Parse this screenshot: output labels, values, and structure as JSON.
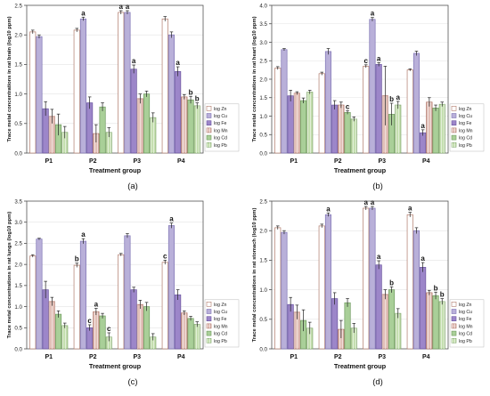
{
  "legend_items": [
    {
      "label": "log Zn",
      "color": "#ffffff",
      "edge": "#b07a6a",
      "hatch": "none"
    },
    {
      "label": "log Cu",
      "color": "#b9b0d9",
      "edge": "#7f74b5",
      "hatch": "none"
    },
    {
      "label": "log Fe",
      "color": "#9c86c9",
      "edge": "#6b55a0",
      "hatch": "none"
    },
    {
      "label": "log Mn",
      "color": "#e2c0b8",
      "edge": "#a86a5c",
      "hatch": "vertical"
    },
    {
      "label": "log Cd",
      "color": "#a9cf98",
      "edge": "#6f9a5e",
      "hatch": "none"
    },
    {
      "label": "log Pb",
      "color": "#c5dfb0",
      "edge": "#7fa56a",
      "hatch": "vertical"
    }
  ],
  "chart_data": [
    {
      "type": "bar",
      "panel_label": "(a)",
      "ylabel": "Trace metal concentrations in rat brain (log10 ppm)",
      "xlabel": "Treatment group",
      "categories": [
        "P1",
        "P2",
        "P3",
        "P4"
      ],
      "ylim": [
        0,
        2.5
      ],
      "yticks": [
        0.0,
        0.5,
        1.0,
        1.5,
        2.0,
        2.5
      ],
      "ytick_labels": [
        "0.0",
        "0.5",
        "1.0",
        "1.5",
        "2.0",
        "2.5"
      ],
      "grid": true,
      "legend": "right",
      "series": [
        {
          "name": "log Zn",
          "values": [
            2.05,
            2.08,
            2.38,
            2.27
          ],
          "errors": [
            0.03,
            0.03,
            0.03,
            0.04
          ],
          "letters": [
            "",
            "",
            "a",
            ""
          ]
        },
        {
          "name": "log Cu",
          "values": [
            1.97,
            2.27,
            2.38,
            2.0
          ],
          "errors": [
            0.03,
            0.03,
            0.03,
            0.05
          ],
          "letters": [
            "",
            "a",
            "a",
            ""
          ]
        },
        {
          "name": "log Fe",
          "values": [
            0.75,
            0.85,
            1.42,
            1.38
          ],
          "errors": [
            0.12,
            0.1,
            0.07,
            0.08
          ],
          "letters": [
            "",
            "",
            "a",
            "a"
          ]
        },
        {
          "name": "log Mn",
          "values": [
            0.62,
            0.33,
            0.92,
            0.95
          ],
          "errors": [
            0.12,
            0.15,
            0.08,
            0.04
          ],
          "letters": [
            "",
            "",
            "",
            ""
          ]
        },
        {
          "name": "log Cd",
          "values": [
            0.48,
            0.78,
            1.0,
            0.9
          ],
          "errors": [
            0.18,
            0.07,
            0.05,
            0.06
          ],
          "letters": [
            "",
            "",
            "",
            "b"
          ]
        },
        {
          "name": "log Pb",
          "values": [
            0.35,
            0.35,
            0.6,
            0.8
          ],
          "errors": [
            0.1,
            0.08,
            0.08,
            0.05
          ],
          "letters": [
            "",
            "",
            "",
            "b"
          ]
        }
      ]
    },
    {
      "type": "bar",
      "panel_label": "(b)",
      "ylabel": "Trace metal concentrations in rat heart (log10 ppm)",
      "xlabel": "Treatment group",
      "categories": [
        "P1",
        "P2",
        "P3",
        "P4"
      ],
      "ylim": [
        0,
        4.0
      ],
      "yticks": [
        0.0,
        0.5,
        1.0,
        1.5,
        2.0,
        2.5,
        3.0,
        3.5,
        4.0
      ],
      "ytick_labels": [
        "0.0",
        "0.5",
        "1.0",
        "1.5",
        "2.0",
        "2.5",
        "3.0",
        "3.5",
        "4.0"
      ],
      "grid": true,
      "legend": "right",
      "series": [
        {
          "name": "log Zn",
          "values": [
            2.3,
            2.15,
            2.35,
            2.25
          ],
          "errors": [
            0.04,
            0.04,
            0.04,
            0.03
          ],
          "letters": [
            "",
            "",
            "c",
            ""
          ]
        },
        {
          "name": "log Cu",
          "values": [
            2.8,
            2.75,
            3.62,
            2.7
          ],
          "errors": [
            0.03,
            0.08,
            0.05,
            0.06
          ],
          "letters": [
            "",
            "",
            "a",
            ""
          ]
        },
        {
          "name": "log Fe",
          "values": [
            1.55,
            1.3,
            2.4,
            0.55
          ],
          "errors": [
            0.15,
            0.12,
            0.05,
            0.08
          ],
          "letters": [
            "",
            "",
            "a",
            "a"
          ]
        },
        {
          "name": "log Mn",
          "values": [
            1.62,
            1.3,
            1.55,
            1.38
          ],
          "errors": [
            0.04,
            0.08,
            0.8,
            0.12
          ],
          "letters": [
            "",
            "",
            "",
            ""
          ]
        },
        {
          "name": "log Cd",
          "values": [
            1.42,
            1.1,
            1.05,
            1.22
          ],
          "errors": [
            0.07,
            0.05,
            0.3,
            0.08
          ],
          "letters": [
            "",
            "c",
            "b",
            ""
          ]
        },
        {
          "name": "log Pb",
          "values": [
            1.65,
            0.92,
            1.3,
            1.32
          ],
          "errors": [
            0.05,
            0.06,
            0.1,
            0.06
          ],
          "letters": [
            "",
            "",
            "a",
            ""
          ]
        }
      ]
    },
    {
      "type": "bar",
      "panel_label": "(c)",
      "ylabel": "Trace metal concentrations in rat lungs (log10 ppm)",
      "xlabel": "Treatment group",
      "categories": [
        "P1",
        "P2",
        "P3",
        "P4"
      ],
      "ylim": [
        0,
        3.5
      ],
      "yticks": [
        0.0,
        0.5,
        1.0,
        1.5,
        2.0,
        2.5,
        3.0,
        3.5
      ],
      "ytick_labels": [
        "0.0",
        "0.5",
        "1.0",
        "1.5",
        "2.0",
        "2.5",
        "3.0",
        "3.5"
      ],
      "grid": true,
      "legend": "right",
      "series": [
        {
          "name": "log Zn",
          "values": [
            2.2,
            1.98,
            2.23,
            2.05
          ],
          "errors": [
            0.03,
            0.05,
            0.03,
            0.05
          ],
          "letters": [
            "",
            "b",
            "",
            "c"
          ]
        },
        {
          "name": "log Cu",
          "values": [
            2.6,
            2.55,
            2.68,
            2.92
          ],
          "errors": [
            0.02,
            0.06,
            0.05,
            0.06
          ],
          "letters": [
            "",
            "a",
            "",
            "a"
          ]
        },
        {
          "name": "log Fe",
          "values": [
            1.4,
            0.5,
            1.4,
            1.28
          ],
          "errors": [
            0.2,
            0.07,
            0.06,
            0.12
          ],
          "letters": [
            "",
            "c",
            "",
            ""
          ]
        },
        {
          "name": "log Mn",
          "values": [
            1.12,
            0.88,
            1.05,
            0.85
          ],
          "errors": [
            0.1,
            0.08,
            0.1,
            0.05
          ],
          "letters": [
            "",
            "a",
            "",
            ""
          ]
        },
        {
          "name": "log Cd",
          "values": [
            0.82,
            0.78,
            1.0,
            0.72
          ],
          "errors": [
            0.08,
            0.06,
            0.1,
            0.05
          ],
          "letters": [
            "",
            "",
            "",
            ""
          ]
        },
        {
          "name": "log Pb",
          "values": [
            0.55,
            0.28,
            0.28,
            0.58
          ],
          "errors": [
            0.06,
            0.1,
            0.08,
            0.06
          ],
          "letters": [
            "",
            "c",
            "",
            ""
          ]
        }
      ]
    },
    {
      "type": "bar",
      "panel_label": "(d)",
      "ylabel": "Trace metal concentrations in rat stomach (log10 ppm)",
      "xlabel": "Treatment group",
      "categories": [
        "P1",
        "P2",
        "P3",
        "P4"
      ],
      "ylim": [
        0,
        2.5
      ],
      "yticks": [
        0.0,
        0.5,
        1.0,
        1.5,
        2.0,
        2.5
      ],
      "ytick_labels": [
        "0.0",
        "0.5",
        "1.0",
        "1.5",
        "2.0",
        "2.5"
      ],
      "grid": true,
      "legend": "right",
      "series": [
        {
          "name": "log Zn",
          "values": [
            2.05,
            2.08,
            2.38,
            2.27
          ],
          "errors": [
            0.03,
            0.03,
            0.03,
            0.04
          ],
          "letters": [
            "",
            "",
            "a",
            "a"
          ]
        },
        {
          "name": "log Cu",
          "values": [
            1.97,
            2.27,
            2.38,
            2.0
          ],
          "errors": [
            0.03,
            0.03,
            0.03,
            0.05
          ],
          "letters": [
            "",
            "a",
            "a",
            ""
          ]
        },
        {
          "name": "log Fe",
          "values": [
            0.75,
            0.85,
            1.42,
            1.38
          ],
          "errors": [
            0.12,
            0.1,
            0.07,
            0.08
          ],
          "letters": [
            "",
            "",
            "a",
            "a"
          ]
        },
        {
          "name": "log Mn",
          "values": [
            0.62,
            0.33,
            0.92,
            0.95
          ],
          "errors": [
            0.12,
            0.15,
            0.08,
            0.04
          ],
          "letters": [
            "",
            "",
            "",
            ""
          ]
        },
        {
          "name": "log Cd",
          "values": [
            0.48,
            0.78,
            1.0,
            0.9
          ],
          "errors": [
            0.18,
            0.07,
            0.05,
            0.06
          ],
          "letters": [
            "",
            "",
            "b",
            "b"
          ]
        },
        {
          "name": "log Pb",
          "values": [
            0.35,
            0.35,
            0.6,
            0.8
          ],
          "errors": [
            0.1,
            0.08,
            0.08,
            0.05
          ],
          "letters": [
            "",
            "",
            "",
            "b"
          ]
        }
      ]
    }
  ]
}
